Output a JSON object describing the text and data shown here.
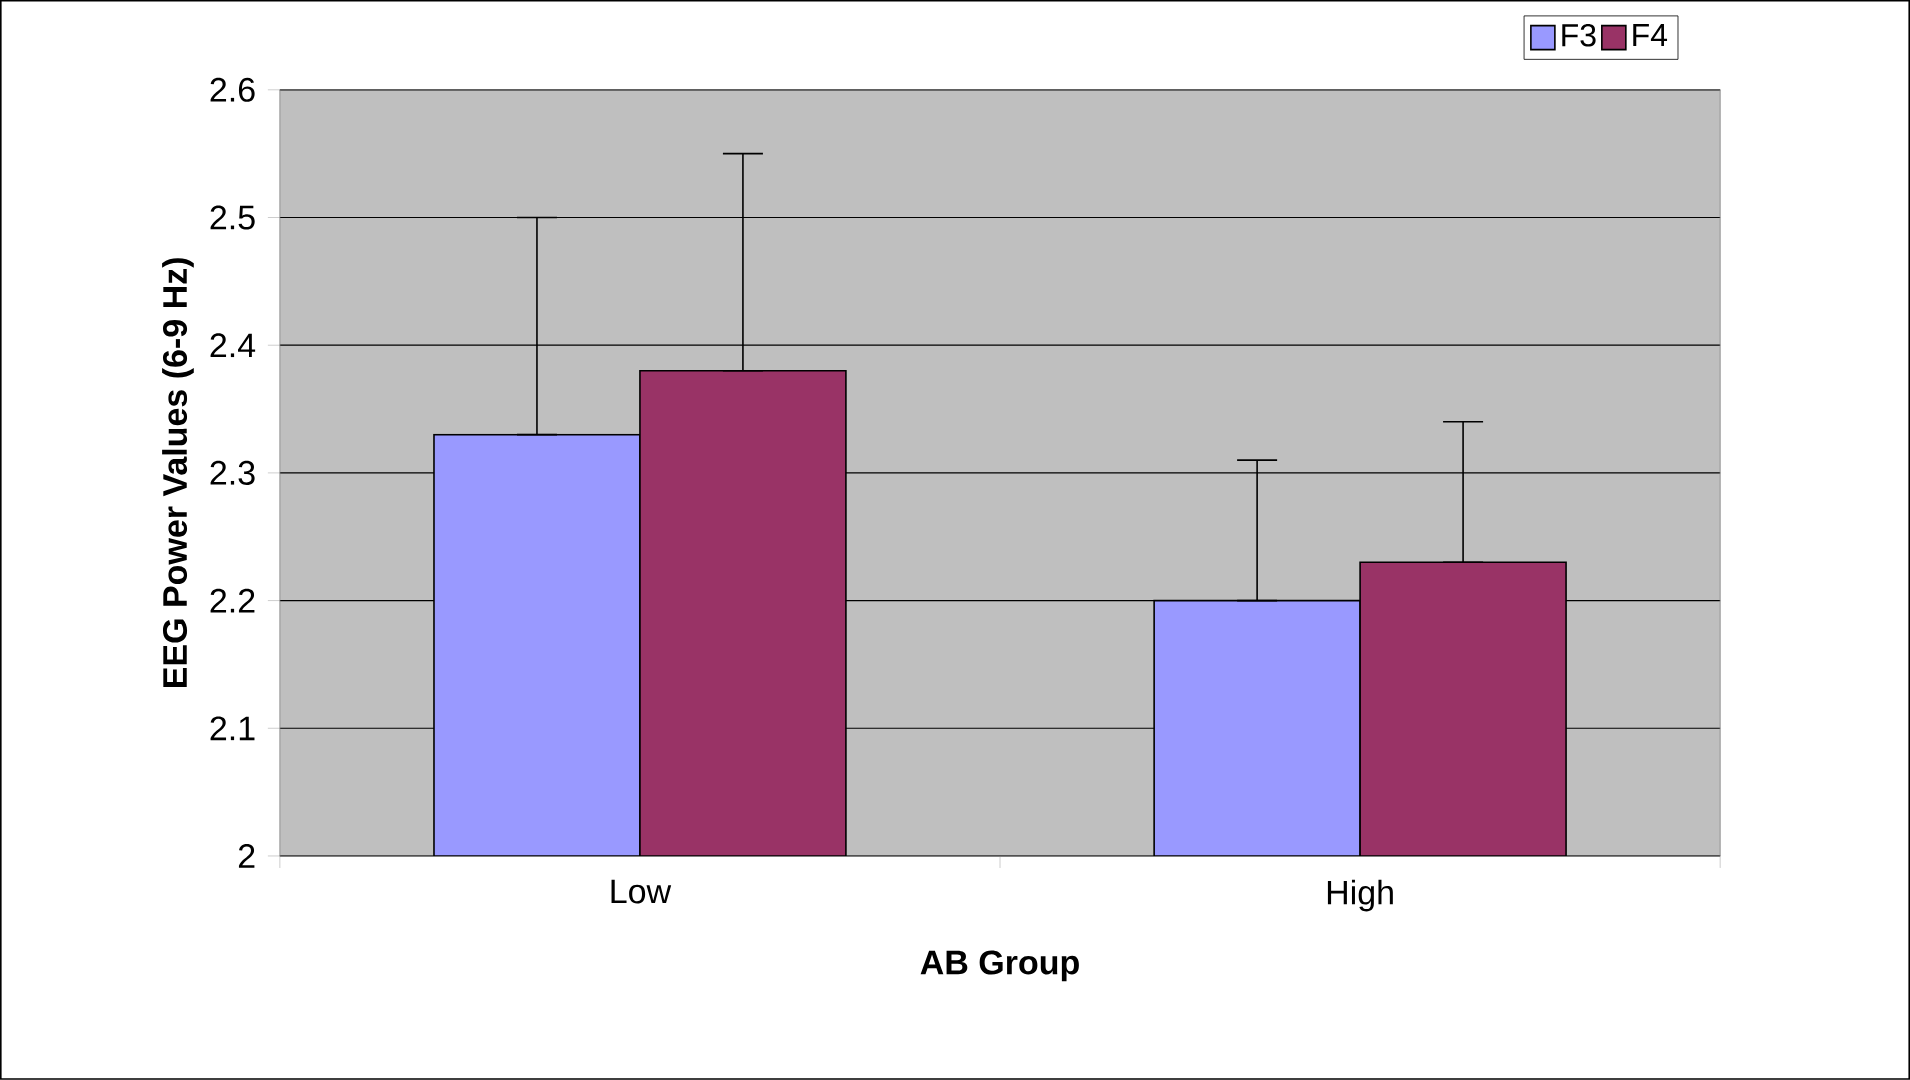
{
  "chart_data": {
    "type": "bar",
    "xlabel": "AB Group",
    "ylabel": "EEG Power Values (6-9 Hz)",
    "categories": [
      "Low",
      "High"
    ],
    "series": [
      {
        "name": "F3",
        "color": "#9999ff",
        "values": [
          2.33,
          2.2
        ],
        "errors": [
          [
            2.33,
            2.5
          ],
          [
            2.2,
            2.31
          ]
        ]
      },
      {
        "name": "F4",
        "color": "#993366",
        "values": [
          2.38,
          2.23
        ],
        "errors": [
          [
            2.38,
            2.55
          ],
          [
            2.23,
            2.34
          ]
        ]
      }
    ],
    "ylim": [
      2,
      2.6
    ],
    "yticks": [
      2,
      2.1,
      2.2,
      2.3,
      2.4,
      2.5,
      2.6
    ],
    "grid": "y",
    "legend": "top right"
  }
}
